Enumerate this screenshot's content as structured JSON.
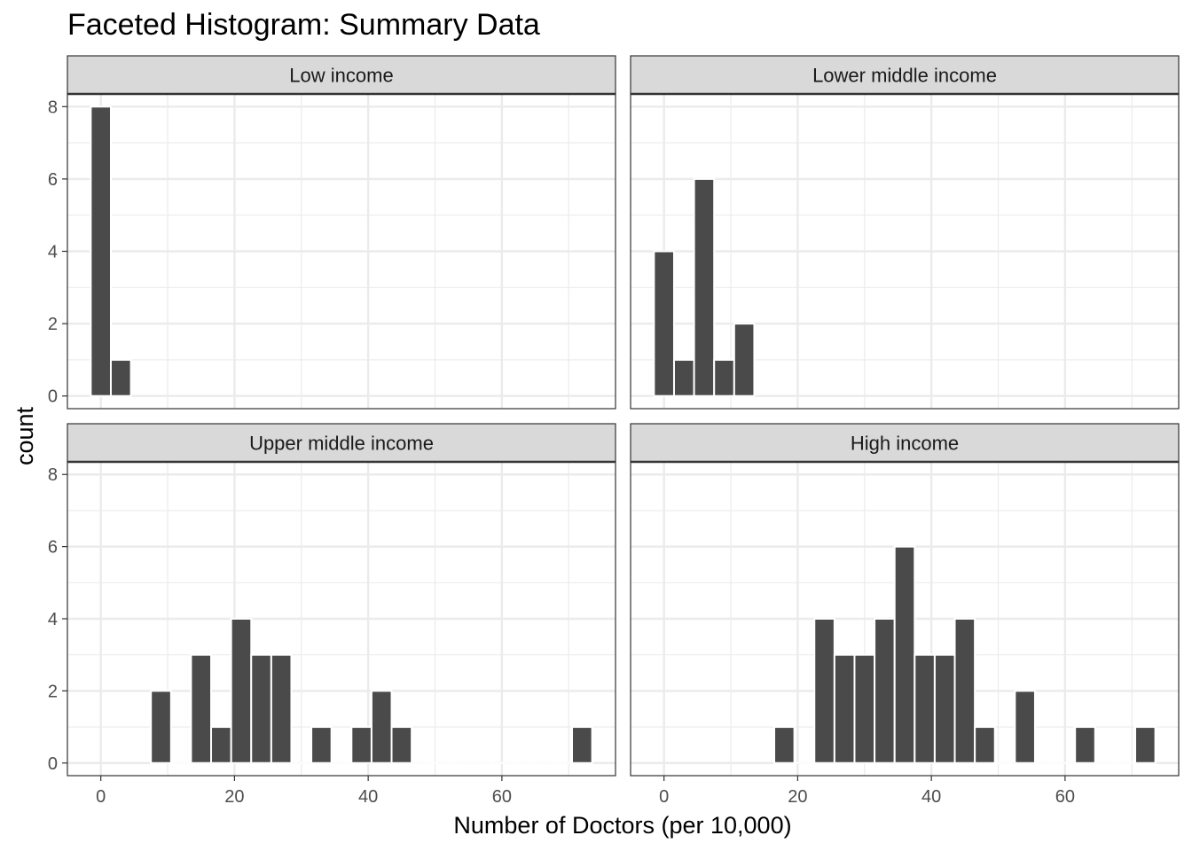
{
  "chart_data": {
    "type": "bar",
    "title": "Faceted Histogram: Summary Data",
    "xlabel": "Number of Doctors (per 10,000)",
    "ylabel": "count",
    "xlim": [
      -5,
      77
    ],
    "ylim": [
      -0.35,
      8.35
    ],
    "x_ticks": [
      "0",
      "20",
      "40",
      "60"
    ],
    "y_ticks": [
      "0",
      "2",
      "4",
      "6",
      "8"
    ],
    "bin_width": 3,
    "grid": true,
    "facets": [
      {
        "label": "Low income",
        "bins": [
          {
            "x": 0,
            "count": 8
          },
          {
            "x": 3,
            "count": 1
          }
        ]
      },
      {
        "label": "Lower middle income",
        "bins": [
          {
            "x": 0,
            "count": 4
          },
          {
            "x": 3,
            "count": 1
          },
          {
            "x": 6,
            "count": 6
          },
          {
            "x": 9,
            "count": 1
          },
          {
            "x": 12,
            "count": 2
          }
        ]
      },
      {
        "label": "Upper middle income",
        "bins": [
          {
            "x": 9,
            "count": 2
          },
          {
            "x": 15,
            "count": 3
          },
          {
            "x": 18,
            "count": 1
          },
          {
            "x": 21,
            "count": 4
          },
          {
            "x": 24,
            "count": 3
          },
          {
            "x": 27,
            "count": 3
          },
          {
            "x": 33,
            "count": 1
          },
          {
            "x": 39,
            "count": 1
          },
          {
            "x": 42,
            "count": 2
          },
          {
            "x": 45,
            "count": 1
          },
          {
            "x": 72,
            "count": 1
          }
        ]
      },
      {
        "label": "High income",
        "bins": [
          {
            "x": 18,
            "count": 1
          },
          {
            "x": 24,
            "count": 4
          },
          {
            "x": 27,
            "count": 3
          },
          {
            "x": 30,
            "count": 3
          },
          {
            "x": 33,
            "count": 4
          },
          {
            "x": 36,
            "count": 6
          },
          {
            "x": 39,
            "count": 3
          },
          {
            "x": 42,
            "count": 3
          },
          {
            "x": 45,
            "count": 4
          },
          {
            "x": 48,
            "count": 1
          },
          {
            "x": 54,
            "count": 2
          },
          {
            "x": 63,
            "count": 1
          },
          {
            "x": 72,
            "count": 1
          }
        ]
      }
    ]
  },
  "colors": {
    "bar_fill": "#4a4a4a",
    "bar_outline": "#ffffff",
    "strip_fill": "#d9d9d9",
    "grid": "#ebebeb",
    "panel_border": "#333333"
  }
}
